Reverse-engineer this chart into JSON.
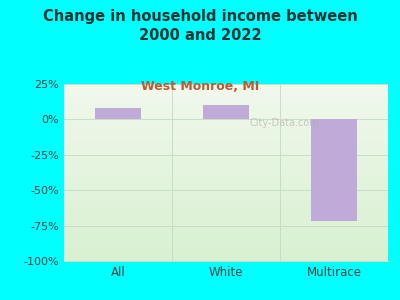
{
  "categories": [
    "All",
    "White",
    "Multirace"
  ],
  "values": [
    8,
    10,
    -72
  ],
  "bar_color": "#c0aad8",
  "title": "Change in household income between\n2000 and 2022",
  "subtitle": "West Monroe, MI",
  "title_color": "#1a3333",
  "subtitle_color": "#b85c38",
  "ylim": [
    -100,
    25
  ],
  "yticks": [
    25,
    0,
    -25,
    -50,
    -75,
    -100
  ],
  "ytick_labels": [
    "25%",
    "0%",
    "-25%",
    "-50%",
    "-75%",
    "-100%"
  ],
  "bg_color": "#00ffff",
  "plot_bg_top": "#f0f8ec",
  "plot_bg_bottom": "#d8f0d0",
  "grid_color": "#c8ddc8",
  "tick_color": "#334444",
  "watermark": "City-Data.com"
}
